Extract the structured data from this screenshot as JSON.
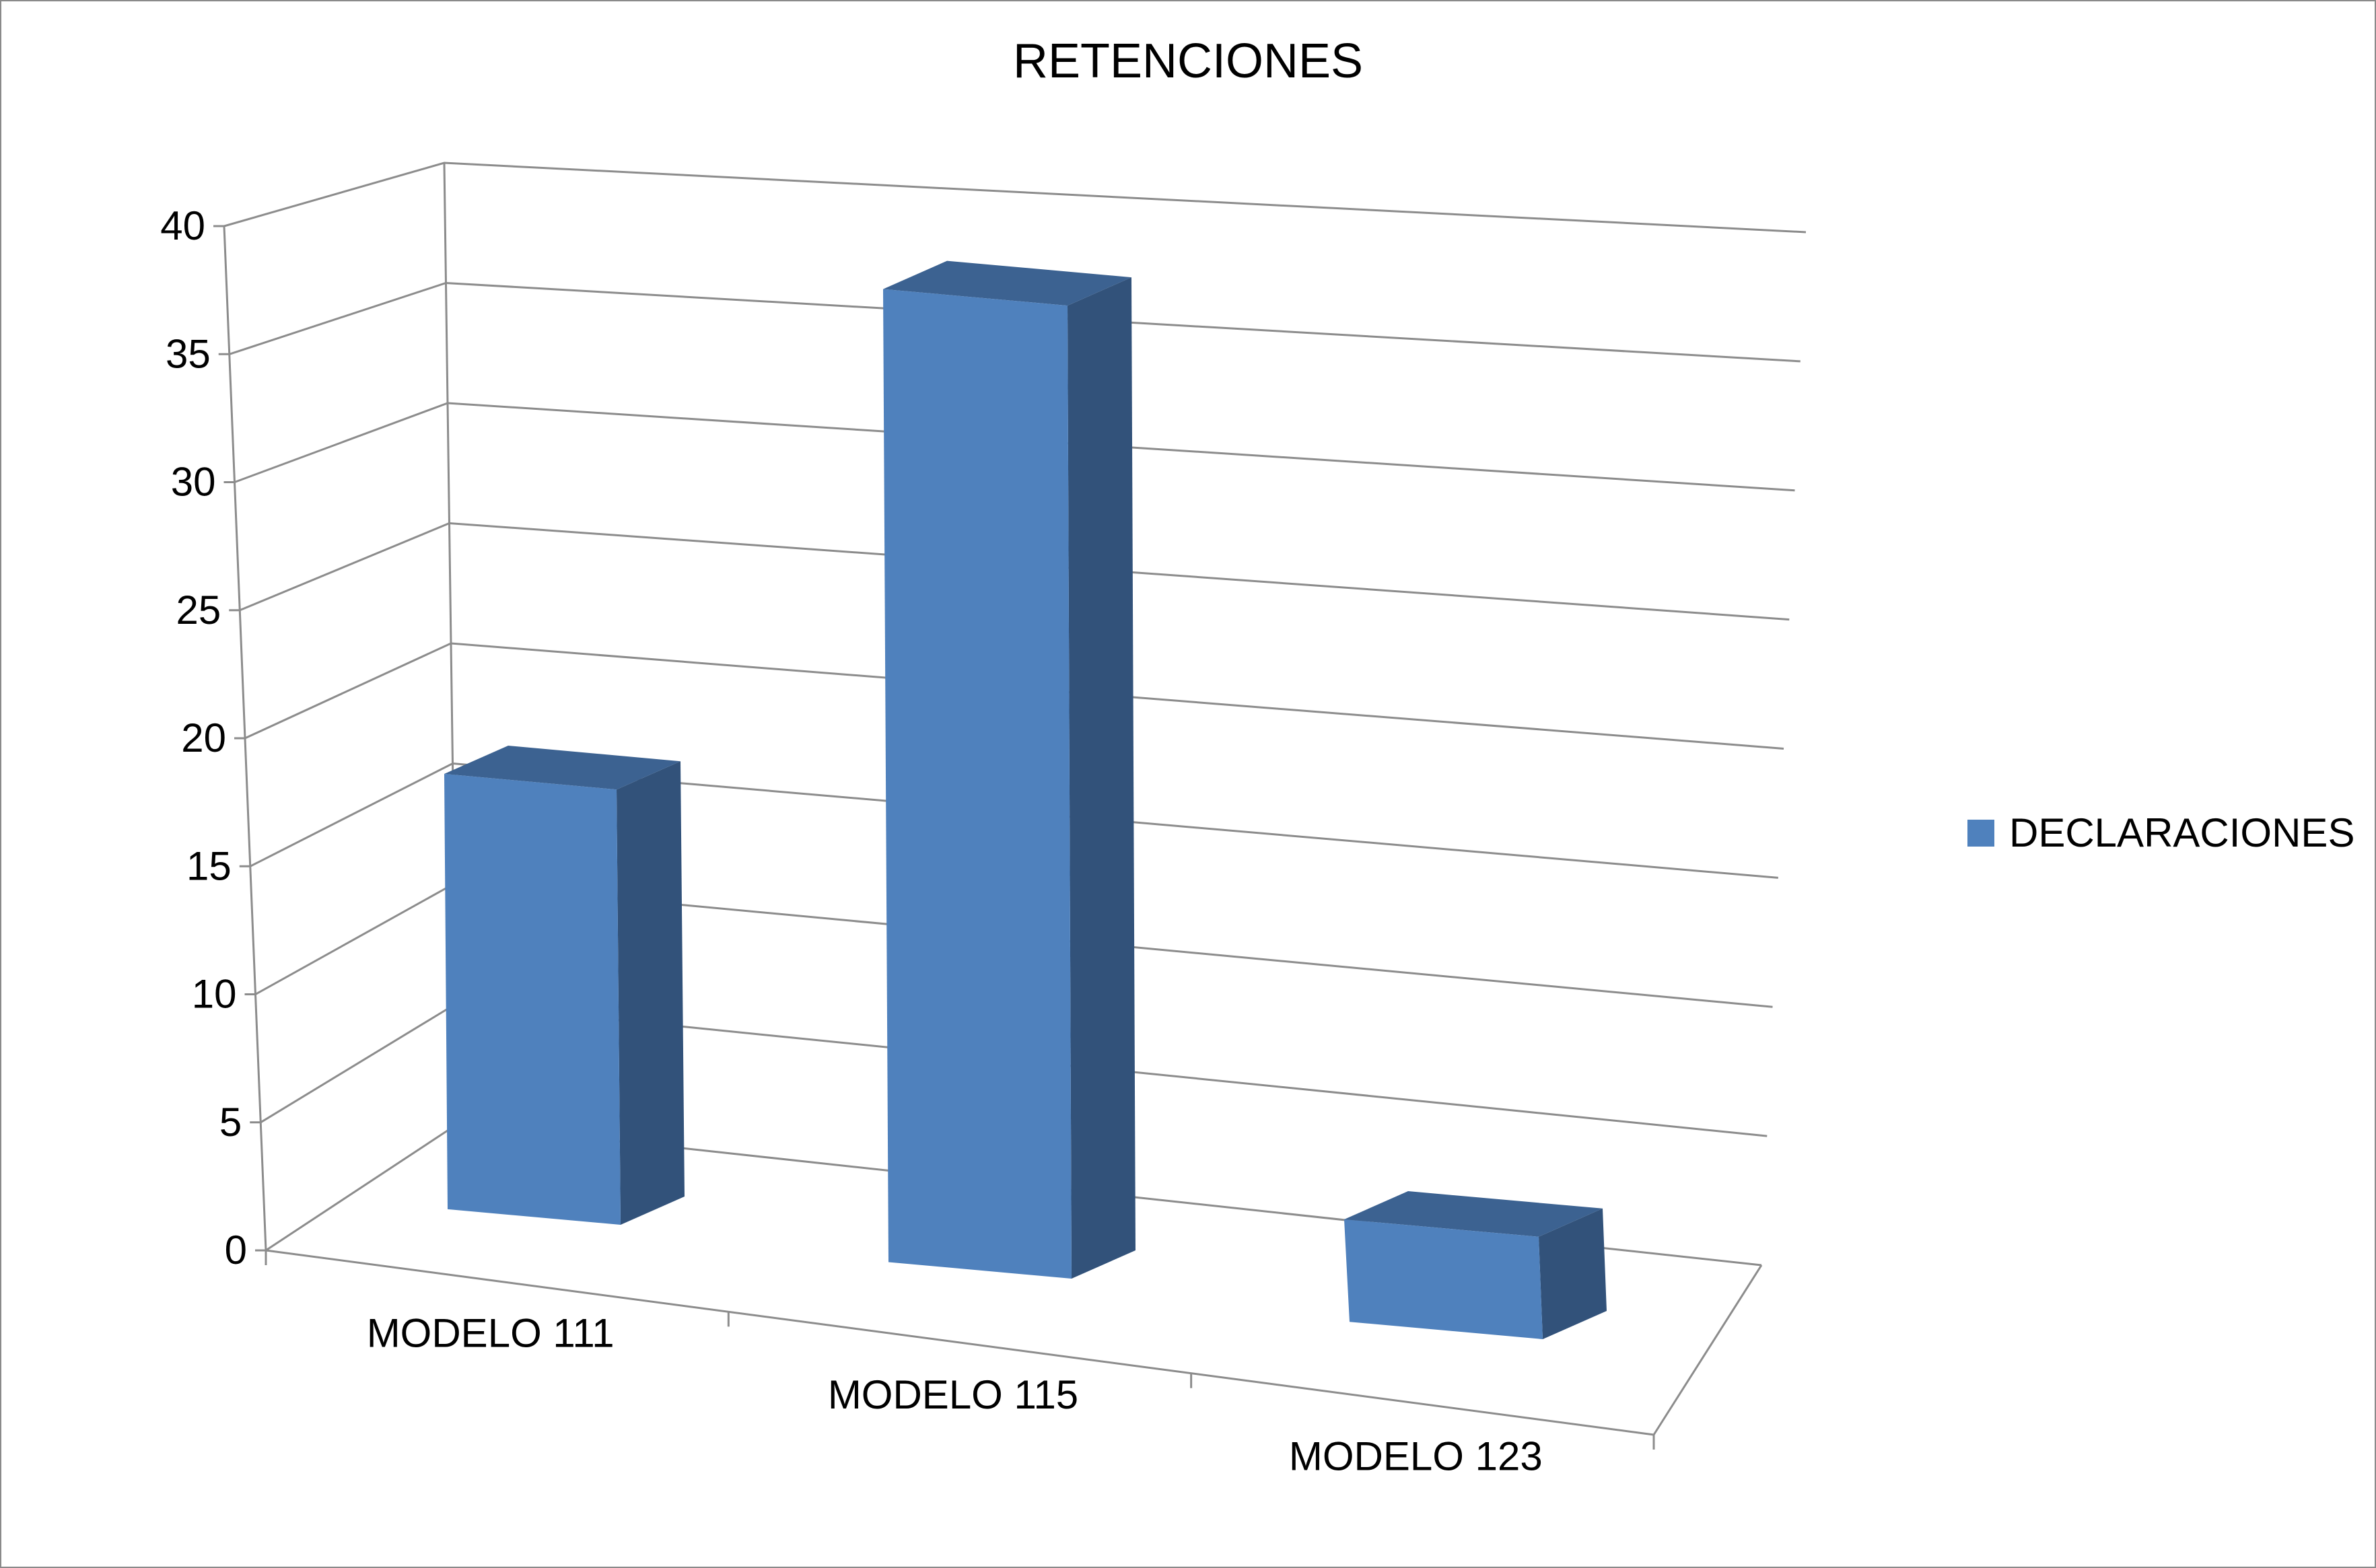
{
  "chart_data": {
    "type": "bar",
    "title": "RETENCIONES",
    "categories": [
      "MODELO 111",
      "MODELO 115",
      "MODELO 123"
    ],
    "series": [
      {
        "name": "DECLARACIONES",
        "values": [
          17,
          38,
          4
        ]
      }
    ],
    "y_ticks": [
      "0",
      "5",
      "10",
      "15",
      "20",
      "25",
      "30",
      "35",
      "40"
    ],
    "ylim": [
      0,
      40
    ],
    "grid": true,
    "legend_position": "right",
    "style": "3d-column",
    "colors": {
      "front": "#4f81bd",
      "top": "#3c6291",
      "side": "#32527a",
      "grid": "#8c8c8c"
    }
  }
}
